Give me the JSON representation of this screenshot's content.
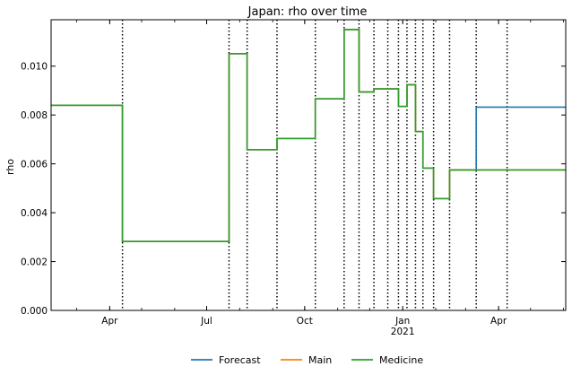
{
  "chart_data": {
    "type": "line",
    "title": "Japan: rho over time",
    "xlabel": "",
    "ylabel": "rho",
    "x_range": [
      "2020-02-06",
      "2021-06-03"
    ],
    "ylim": [
      0.0,
      0.0119
    ],
    "y_ticks": [
      {
        "value": 0.0,
        "label": "0.000"
      },
      {
        "value": 0.002,
        "label": "0.002"
      },
      {
        "value": 0.004,
        "label": "0.004"
      },
      {
        "value": 0.006,
        "label": "0.006"
      },
      {
        "value": 0.008,
        "label": "0.008"
      },
      {
        "value": 0.01,
        "label": "0.010"
      }
    ],
    "x_ticks": [
      {
        "date": "2020-04-01",
        "label": "Apr",
        "sublabel": ""
      },
      {
        "date": "2020-07-01",
        "label": "Jul",
        "sublabel": ""
      },
      {
        "date": "2020-10-01",
        "label": "Oct",
        "sublabel": ""
      },
      {
        "date": "2021-01-01",
        "label": "Jan",
        "sublabel": "2021"
      },
      {
        "date": "2021-04-01",
        "label": "Apr",
        "sublabel": ""
      }
    ],
    "change_points": [
      "2020-04-13",
      "2020-07-22",
      "2020-08-08",
      "2020-09-05",
      "2020-10-11",
      "2020-11-07",
      "2020-11-21",
      "2020-12-05",
      "2020-12-18",
      "2020-12-28",
      "2021-01-05",
      "2021-01-13",
      "2021-01-20",
      "2021-01-30",
      "2021-02-14",
      "2021-03-11",
      "2021-04-09"
    ],
    "grid": false,
    "legend_position": "bottom-center",
    "series": [
      {
        "name": "Forecast",
        "color": "#1f77b4",
        "x": [
          "2020-02-06",
          "2020-04-13",
          "2020-07-22",
          "2020-08-08",
          "2020-09-05",
          "2020-10-11",
          "2020-11-07",
          "2020-11-21",
          "2020-12-05",
          "2020-12-28",
          "2021-01-05",
          "2021-01-13",
          "2021-01-20",
          "2021-01-30",
          "2021-02-14",
          "2021-03-11",
          "2021-06-03"
        ],
        "y": [
          0.0084,
          0.00282,
          0.01051,
          0.00658,
          0.00704,
          0.00866,
          0.0115,
          0.00894,
          0.00907,
          0.00835,
          0.00924,
          0.00732,
          0.00583,
          0.00458,
          0.00575,
          0.00832,
          0.00832
        ],
        "step": "post"
      },
      {
        "name": "Main",
        "color": "#ff7f0e",
        "x": [
          "2020-02-06",
          "2020-04-13",
          "2020-07-22",
          "2020-08-08",
          "2020-09-05",
          "2020-10-11",
          "2020-11-07",
          "2020-11-21",
          "2020-12-05",
          "2020-12-28",
          "2021-01-05",
          "2021-01-13",
          "2021-01-20",
          "2021-01-30",
          "2021-02-14",
          "2021-06-03"
        ],
        "y": [
          0.0084,
          0.00282,
          0.01051,
          0.00658,
          0.00704,
          0.00866,
          0.0115,
          0.00894,
          0.00907,
          0.00835,
          0.00924,
          0.00732,
          0.00583,
          0.00458,
          0.00575,
          0.00575
        ],
        "step": "post"
      },
      {
        "name": "Medicine",
        "color": "#2ca02c",
        "x": [
          "2020-02-06",
          "2020-04-13",
          "2020-07-22",
          "2020-08-08",
          "2020-09-05",
          "2020-10-11",
          "2020-11-07",
          "2020-11-21",
          "2020-12-05",
          "2020-12-28",
          "2021-01-05",
          "2021-01-13",
          "2021-01-20",
          "2021-01-30",
          "2021-02-14",
          "2021-06-03"
        ],
        "y": [
          0.0084,
          0.00282,
          0.01051,
          0.00658,
          0.00704,
          0.00866,
          0.0115,
          0.00894,
          0.00907,
          0.00835,
          0.00924,
          0.00732,
          0.00583,
          0.00458,
          0.00575,
          0.00575
        ],
        "step": "post"
      }
    ]
  }
}
